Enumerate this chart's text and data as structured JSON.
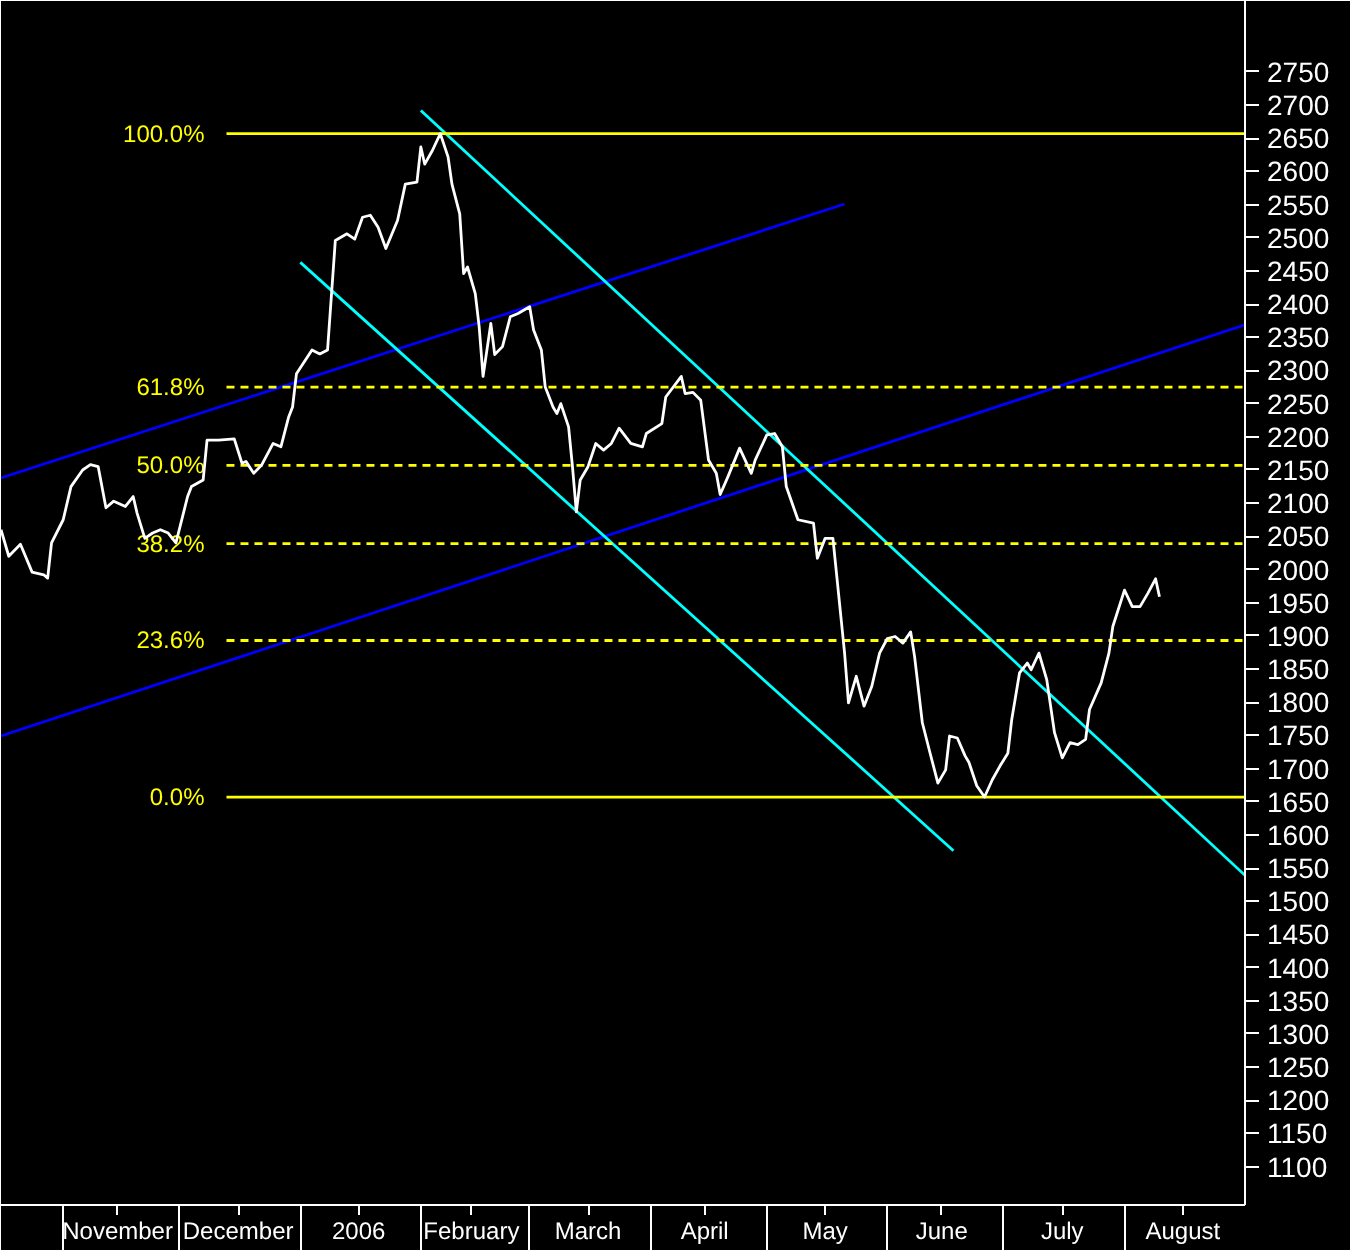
{
  "chart_data": {
    "type": "line",
    "xlim": [
      "2005-10-16",
      "2006-09-01"
    ],
    "ylim": [
      1042,
      2857
    ],
    "grid": false,
    "xticks": [
      {
        "value": "2005-11-01",
        "label": null
      },
      {
        "value": "2005-11-15",
        "label": "November"
      },
      {
        "value": "2005-12-01",
        "label": null
      },
      {
        "value": "2005-12-16",
        "label": "December"
      },
      {
        "value": "2006-01-01",
        "label": null
      },
      {
        "value": "2006-01-16",
        "label": "2006"
      },
      {
        "value": "2006-02-01",
        "label": null
      },
      {
        "value": "2006-02-14",
        "label": "February"
      },
      {
        "value": "2006-03-01",
        "label": null
      },
      {
        "value": "2006-03-16",
        "label": "March"
      },
      {
        "value": "2006-04-01",
        "label": null
      },
      {
        "value": "2006-04-15",
        "label": "April"
      },
      {
        "value": "2006-05-01",
        "label": null
      },
      {
        "value": "2006-05-16",
        "label": "May"
      },
      {
        "value": "2006-06-01",
        "label": null
      },
      {
        "value": "2006-06-15",
        "label": "June"
      },
      {
        "value": "2006-07-01",
        "label": null
      },
      {
        "value": "2006-07-16",
        "label": "July"
      },
      {
        "value": "2006-08-01",
        "label": null
      },
      {
        "value": "2006-08-16",
        "label": "August"
      }
    ],
    "yticks": [
      1100,
      1150,
      1200,
      1250,
      1300,
      1350,
      1400,
      1450,
      1500,
      1550,
      1600,
      1650,
      1700,
      1750,
      1800,
      1850,
      1900,
      1950,
      2000,
      2050,
      2100,
      2150,
      2200,
      2250,
      2300,
      2350,
      2400,
      2450,
      2500,
      2550,
      2600,
      2650,
      2700,
      2750
    ],
    "series": [
      {
        "color": "#0000ff",
        "line_style": "solid",
        "x": [
          "2005-10-16",
          "2006-05-21"
        ],
        "values": [
          2138,
          2551
        ]
      },
      {
        "color": "#0000ff",
        "line_style": "solid",
        "x": [
          "2005-10-16",
          "2006-09-01"
        ],
        "values": [
          1749,
          2369
        ]
      },
      {
        "color": "#00ffff",
        "line_style": "solid",
        "x": [
          "2006-02-01",
          "2006-09-01"
        ],
        "values": [
          2692,
          1539
        ]
      },
      {
        "color": "#00ffff",
        "line_style": "solid",
        "x": [
          "2006-01-01",
          "2006-06-18"
        ],
        "values": [
          2463,
          1576
        ]
      },
      {
        "name": "100.0%",
        "color": "#ffff00",
        "line_style": "solid",
        "x": [
          "2005-12-13",
          "2006-09-01"
        ],
        "values": [
          2657,
          2657
        ]
      },
      {
        "name": "61.8%",
        "color": "#ffff00",
        "line_style": "dashed",
        "x": [
          "2005-12-13",
          "2006-09-01"
        ],
        "values": [
          2275,
          2275
        ]
      },
      {
        "name": "50.0%",
        "color": "#ffff00",
        "line_style": "dashed",
        "x": [
          "2005-12-13",
          "2006-09-01"
        ],
        "values": [
          2157,
          2157
        ]
      },
      {
        "name": "38.2%",
        "color": "#ffff00",
        "line_style": "dashed",
        "x": [
          "2005-12-13",
          "2006-09-01"
        ],
        "values": [
          2039,
          2039
        ]
      },
      {
        "name": "23.6%",
        "color": "#ffff00",
        "line_style": "dashed",
        "x": [
          "2005-12-13",
          "2006-09-01"
        ],
        "values": [
          1893,
          1893
        ]
      },
      {
        "name": "0.0%",
        "color": "#ffff00",
        "line_style": "solid",
        "x": [
          "2005-12-13",
          "2006-09-01"
        ],
        "values": [
          1657,
          1657
        ]
      },
      {
        "color": "#ffffff",
        "line_style": "solid",
        "x": [
          "2005-10-16",
          "2005-10-18",
          "2005-10-21",
          "2005-10-24",
          "2005-10-27",
          "2005-10-28",
          "2005-10-29",
          "2005-11-01",
          "2005-11-03",
          "2005-11-06",
          "2005-11-08",
          "2005-11-10",
          "2005-11-12",
          "2005-11-14",
          "2005-11-17",
          "2005-11-19",
          "2005-11-20",
          "2005-11-22",
          "2005-11-24",
          "2005-11-26",
          "2005-11-28",
          "2005-11-30",
          "2005-12-03",
          "2005-12-04",
          "2005-12-07",
          "2005-12-08",
          "2005-12-11",
          "2005-12-15",
          "2005-12-17",
          "2005-12-18",
          "2005-12-20",
          "2005-12-22",
          "2005-12-25",
          "2005-12-27",
          "2005-12-29",
          "2005-12-30",
          "2005-12-31",
          "2006-01-04",
          "2006-01-06",
          "2006-01-08",
          "2006-01-10",
          "2006-01-13",
          "2006-01-15",
          "2006-01-17",
          "2006-01-19",
          "2006-01-21",
          "2006-01-23",
          "2006-01-26",
          "2006-01-28",
          "2006-01-31",
          "2006-02-01",
          "2006-02-02",
          "2006-02-04",
          "2006-02-06",
          "2006-02-08",
          "2006-02-09",
          "2006-02-11",
          "2006-02-12",
          "2006-02-13",
          "2006-02-15",
          "2006-02-16",
          "2006-02-17",
          "2006-02-19",
          "2006-02-20",
          "2006-02-22",
          "2006-02-24",
          "2006-02-26",
          "2006-03-01",
          "2006-03-02",
          "2006-03-04",
          "2006-03-05",
          "2006-03-07",
          "2006-03-08",
          "2006-03-09",
          "2006-03-11",
          "2006-03-12",
          "2006-03-13",
          "2006-03-14",
          "2006-03-16",
          "2006-03-18",
          "2006-03-20",
          "2006-03-22",
          "2006-03-24",
          "2006-03-27",
          "2006-03-30",
          "2006-03-31",
          "2006-04-04",
          "2006-04-05",
          "2006-04-09",
          "2006-04-10",
          "2006-04-12",
          "2006-04-14",
          "2006-04-16",
          "2006-04-18",
          "2006-04-19",
          "2006-04-21",
          "2006-04-24",
          "2006-04-27",
          "2006-04-28",
          "2006-05-01",
          "2006-05-03",
          "2006-05-05",
          "2006-05-06",
          "2006-05-09",
          "2006-05-13",
          "2006-05-14",
          "2006-05-16",
          "2006-05-18",
          "2006-05-21",
          "2006-05-22",
          "2006-05-24",
          "2006-05-26",
          "2006-05-28",
          "2006-05-30",
          "2006-06-01",
          "2006-06-03",
          "2006-06-05",
          "2006-06-07",
          "2006-06-08",
          "2006-06-10",
          "2006-06-12",
          "2006-06-14",
          "2006-06-16",
          "2006-06-17",
          "2006-06-19",
          "2006-06-21",
          "2006-06-22",
          "2006-06-24",
          "2006-06-26",
          "2006-06-28",
          "2006-06-30",
          "2006-07-02",
          "2006-07-03",
          "2006-07-05",
          "2006-07-07",
          "2006-07-08",
          "2006-07-10",
          "2006-07-12",
          "2006-07-14",
          "2006-07-16",
          "2006-07-18",
          "2006-07-20",
          "2006-07-22",
          "2006-07-23",
          "2006-07-26",
          "2006-07-28",
          "2006-07-29",
          "2006-08-01",
          "2006-08-03",
          "2006-08-05",
          "2006-08-07",
          "2006-08-09",
          "2006-08-10"
        ],
        "values": [
          2060,
          2020,
          2038,
          1996,
          1992,
          1987,
          2040,
          2075,
          2125,
          2150,
          2158,
          2155,
          2093,
          2103,
          2095,
          2110,
          2085,
          2047,
          2055,
          2060,
          2055,
          2040,
          2110,
          2125,
          2135,
          2195,
          2195,
          2197,
          2160,
          2163,
          2145,
          2157,
          2190,
          2185,
          2230,
          2245,
          2295,
          2331,
          2325,
          2331,
          2496,
          2506,
          2498,
          2531,
          2534,
          2516,
          2484,
          2526,
          2581,
          2584,
          2637,
          2611,
          2632,
          2657,
          2622,
          2581,
          2536,
          2446,
          2456,
          2416,
          2366,
          2291,
          2371,
          2324,
          2336,
          2381,
          2386,
          2396,
          2361,
          2331,
          2275,
          2245,
          2235,
          2250,
          2215,
          2155,
          2087,
          2135,
          2155,
          2190,
          2180,
          2190,
          2213,
          2190,
          2185,
          2205,
          2220,
          2260,
          2291,
          2265,
          2267,
          2255,
          2165,
          2145,
          2113,
          2140,
          2183,
          2145,
          2165,
          2203,
          2205,
          2185,
          2125,
          2075,
          2070,
          2017,
          2047,
          2047,
          1874,
          1799,
          1839,
          1794,
          1824,
          1874,
          1896,
          1899,
          1889,
          1906,
          1869,
          1769,
          1723,
          1678,
          1698,
          1749,
          1746,
          1719,
          1709,
          1674,
          1657,
          1683,
          1704,
          1723,
          1774,
          1844,
          1859,
          1849,
          1874,
          1834,
          1754,
          1716,
          1739,
          1736,
          1744,
          1789,
          1829,
          1874,
          1914,
          1969,
          1944,
          1944,
          1964,
          1986,
          1959
        ]
      }
    ]
  }
}
